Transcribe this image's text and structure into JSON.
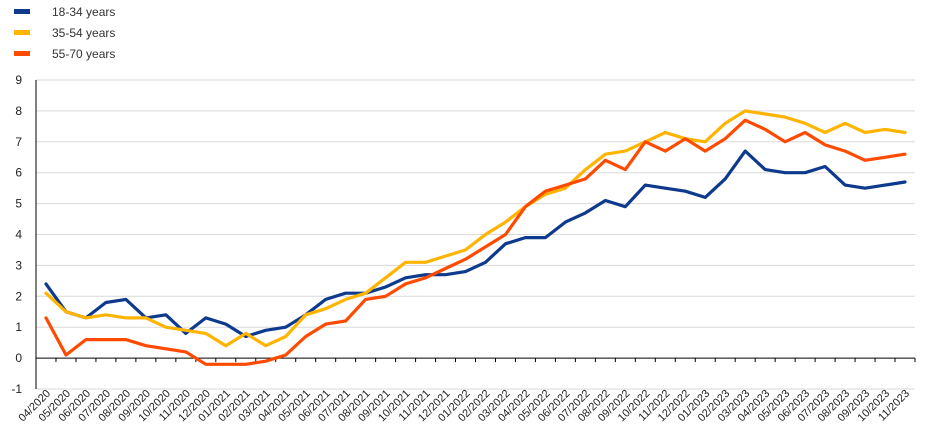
{
  "chart_data": {
    "type": "line",
    "title": "",
    "xlabel": "",
    "ylabel": "",
    "ylim": [
      -1,
      9
    ],
    "yticks": [
      -1,
      0,
      1,
      2,
      3,
      4,
      5,
      6,
      7,
      8,
      9
    ],
    "grid": true,
    "legend_position": "top-left",
    "categories": [
      "04/2020",
      "05/2020",
      "06/2020",
      "07/2020",
      "08/2020",
      "09/2020",
      "10/2020",
      "11/2020",
      "12/2020",
      "01/2021",
      "02/2021",
      "03/2021",
      "04/2021",
      "05/2021",
      "06/2021",
      "07/2021",
      "08/2021",
      "09/2021",
      "10/2021",
      "11/2021",
      "12/2021",
      "01/2022",
      "02/2022",
      "03/2022",
      "04/2022",
      "05/2022",
      "06/2022",
      "07/2022",
      "08/2022",
      "09/2022",
      "10/2022",
      "11/2022",
      "12/2022",
      "01/2023",
      "02/2023",
      "03/2023",
      "04/2023",
      "05/2023",
      "06/2023",
      "07/2023",
      "08/2023",
      "09/2023",
      "10/2023",
      "11/2023"
    ],
    "series": [
      {
        "name": "18-34 years",
        "color": "#0d3a8c",
        "values": [
          2.4,
          1.5,
          1.3,
          1.8,
          1.9,
          1.3,
          1.4,
          0.8,
          1.3,
          1.1,
          0.7,
          0.9,
          1.0,
          1.4,
          1.9,
          2.1,
          2.1,
          2.3,
          2.6,
          2.7,
          2.7,
          2.8,
          3.1,
          3.7,
          3.9,
          3.9,
          4.4,
          4.7,
          5.1,
          4.9,
          5.6,
          5.5,
          5.4,
          5.2,
          5.8,
          6.7,
          6.1,
          6.0,
          6.0,
          6.2,
          5.6,
          5.5,
          5.6,
          5.7
        ]
      },
      {
        "name": "35-54 years",
        "color": "#ffb400",
        "values": [
          2.1,
          1.5,
          1.3,
          1.4,
          1.3,
          1.3,
          1.0,
          0.9,
          0.8,
          0.4,
          0.8,
          0.4,
          0.7,
          1.4,
          1.6,
          1.9,
          2.1,
          2.6,
          3.1,
          3.1,
          3.3,
          3.5,
          4.0,
          4.4,
          4.9,
          5.3,
          5.5,
          6.1,
          6.6,
          6.7,
          7.0,
          7.3,
          7.1,
          7.0,
          7.6,
          8.0,
          7.9,
          7.8,
          7.6,
          7.3,
          7.6,
          7.3,
          7.4,
          7.3
        ]
      },
      {
        "name": "55-70 years",
        "color": "#ff4b00",
        "values": [
          1.3,
          0.1,
          0.6,
          0.6,
          0.6,
          0.4,
          0.3,
          0.2,
          -0.2,
          -0.2,
          -0.2,
          -0.1,
          0.1,
          0.7,
          1.1,
          1.2,
          1.9,
          2.0,
          2.4,
          2.6,
          2.9,
          3.2,
          3.6,
          4.0,
          4.9,
          5.4,
          5.6,
          5.8,
          6.4,
          6.1,
          7.0,
          6.7,
          7.1,
          6.7,
          7.1,
          7.7,
          7.4,
          7.0,
          7.3,
          6.9,
          6.7,
          6.4,
          6.5,
          6.6
        ]
      }
    ]
  }
}
